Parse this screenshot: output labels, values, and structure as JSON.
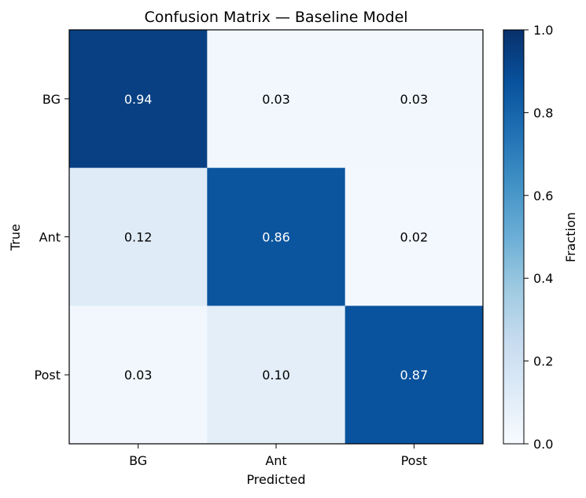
{
  "chart_data": {
    "type": "heatmap",
    "title": "Confusion Matrix — Baseline Model",
    "xlabel": "Predicted",
    "ylabel": "True",
    "x_categories": [
      "BG",
      "Ant",
      "Post"
    ],
    "y_categories": [
      "BG",
      "Ant",
      "Post"
    ],
    "values": [
      [
        0.94,
        0.03,
        0.03
      ],
      [
        0.12,
        0.86,
        0.02
      ],
      [
        0.03,
        0.1,
        0.87
      ]
    ],
    "value_labels": [
      [
        "0.94",
        "0.03",
        "0.03"
      ],
      [
        "0.12",
        "0.86",
        "0.02"
      ],
      [
        "0.03",
        "0.10",
        "0.87"
      ]
    ],
    "colormap": "Blues",
    "vmin": 0,
    "vmax": 1,
    "colorbar": {
      "label": "Fraction",
      "ticks": [
        0.0,
        0.2,
        0.4,
        0.6,
        0.8,
        1.0
      ],
      "tick_labels": [
        "0.0",
        "0.2",
        "0.4",
        "0.6",
        "0.8",
        "1.0"
      ]
    },
    "grid": false
  }
}
